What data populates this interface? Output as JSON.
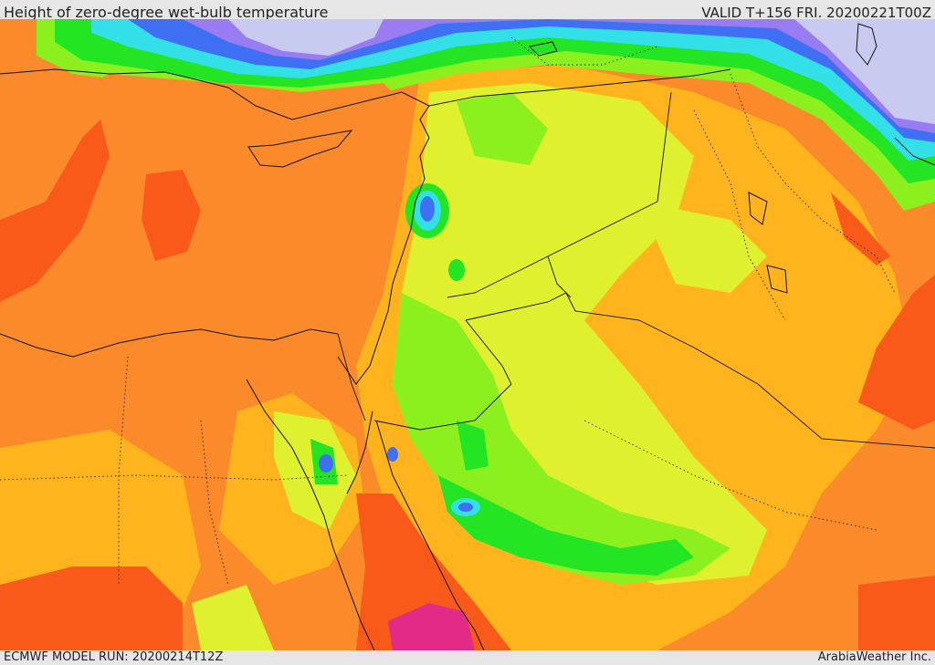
{
  "header": {
    "title": "Height of zero-degree wet-bulb temperature",
    "valid": "VALID T+156 FRI. 20200221T00Z"
  },
  "footer": {
    "model_run": "ECMWF MODEL RUN: 20200214T12Z",
    "credit": "ArabiaWeather Inc."
  },
  "map": {
    "region": "Eastern Mediterranean / Middle East",
    "colors": {
      "snow_lavender": "#c8caf0",
      "purple": "#9a7cf2",
      "blue": "#3f6ff2",
      "cyan": "#33e0e8",
      "teal": "#2fbf9a",
      "green": "#23e523",
      "lime": "#8cf01f",
      "yellow_green": "#dff02f",
      "yellow": "#ffd22a",
      "orange_light": "#ffb31c",
      "orange": "#fb8a2a",
      "red_orange": "#f95a1a",
      "magenta": "#e22a86"
    }
  }
}
